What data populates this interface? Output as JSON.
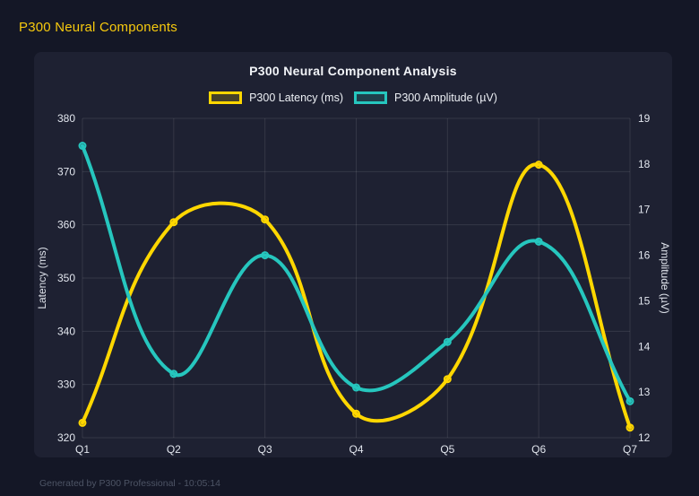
{
  "header": {
    "title": "P300 Neural Components"
  },
  "footer": {
    "text": "Generated by P300 Professional - 10:05:14"
  },
  "colors": {
    "page_bg": "#141726",
    "card_bg": "#1e2132",
    "grid": "rgba(255,255,255,0.10)",
    "tick_text": "#e2e6ee",
    "title_text": "#f2f4f8",
    "header_accent": "#f6c90e",
    "latency": "#ffd700",
    "amplitude": "#26c6be"
  },
  "chart_data": {
    "type": "line",
    "title": "P300 Neural Component Analysis",
    "categories": [
      "Q1",
      "Q2",
      "Q3",
      "Q4",
      "Q5",
      "Q6",
      "Q7"
    ],
    "series": [
      {
        "name": "P300 Latency (ms)",
        "axis": "left",
        "color": "#ffd700",
        "values": [
          322.8,
          360.5,
          361.0,
          324.5,
          331.0,
          371.3,
          321.9
        ]
      },
      {
        "name": "P300 Amplitude (µV)",
        "axis": "right",
        "color": "#26c6be",
        "values": [
          18.4,
          13.4,
          16.0,
          13.1,
          14.1,
          16.3,
          12.8
        ]
      }
    ],
    "left_axis": {
      "label": "Latency (ms)",
      "min": 320,
      "max": 380,
      "ticks": [
        320,
        330,
        340,
        350,
        360,
        370,
        380
      ]
    },
    "right_axis": {
      "label": "Amplitude (µV)",
      "min": 12,
      "max": 19,
      "ticks": [
        12,
        13,
        14,
        15,
        16,
        17,
        18,
        19
      ]
    },
    "grid": true,
    "legend_position": "top",
    "line_tension": 0.4
  }
}
